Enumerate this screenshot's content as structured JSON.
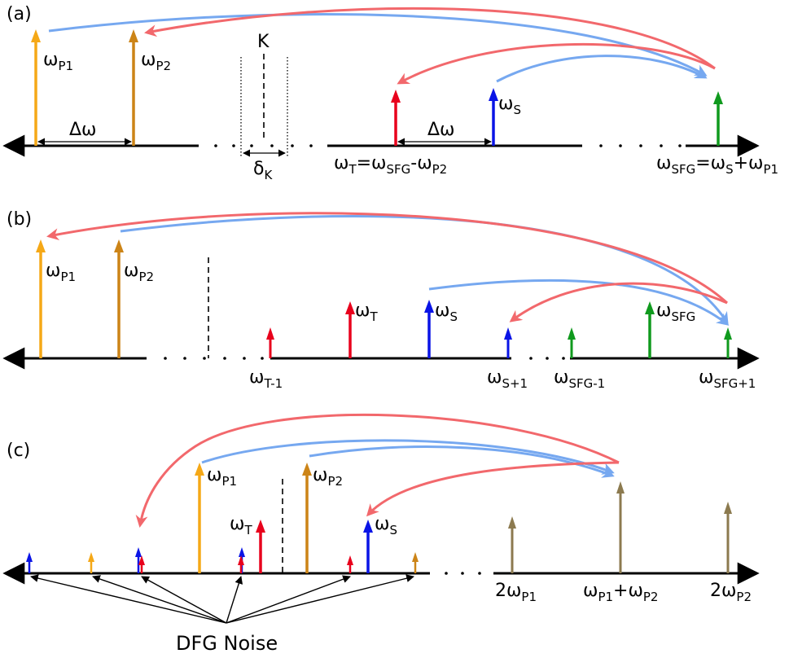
{
  "panels": {
    "a": {
      "label": "(a)",
      "omega": "ω",
      "p1_sub": "P1",
      "p2_sub": "P2",
      "delta_omega_left": "Δω",
      "delta_omega_right": "Δω",
      "k_label": "K",
      "delta_k": "δ",
      "delta_k_sub": "K",
      "s_sub": "S",
      "t_eq": {
        "w1": "ω",
        "s1": "T",
        "eq": "=ω",
        "s2": "SFG",
        "minus": "-ω",
        "s3": "P2"
      },
      "sfg_eq": {
        "w1": "ω",
        "s1": "SFG",
        "eq": "=ω",
        "s2": "S",
        "plus": "+ω",
        "s3": "P1"
      }
    },
    "b": {
      "label": "(b)",
      "p1_sub": "P1",
      "p2_sub": "P2",
      "t_sub": "T",
      "s_sub": "S",
      "sfg_sub": "SFG",
      "t_minus_sub": "T-1",
      "s_plus_sub": "S+1",
      "sfg_minus_sub": "SFG-1",
      "sfg_plus_sub": "SFG+1"
    },
    "c": {
      "label": "(c)",
      "p1_sub": "P1",
      "p2_sub": "P2",
      "t_sub": "T",
      "s_sub": "S",
      "two_p1": {
        "pre": "2ω",
        "sub": "P1"
      },
      "sum": {
        "w1": "ω",
        "s1": "P1",
        "plus": "+ω",
        "s2": "P2"
      },
      "two_p2": {
        "pre": "2ω",
        "sub": "P2"
      },
      "noise_label": "DFG Noise"
    }
  },
  "colors": {
    "pump1": "#f5a817",
    "pump2": "#cc8417",
    "red": "#e8001c",
    "blue": "#0a14e6",
    "green": "#109a1e",
    "khaki": "#8c7a4f",
    "arc_red": "#f2686c",
    "arc_blue": "#76a8f0"
  }
}
